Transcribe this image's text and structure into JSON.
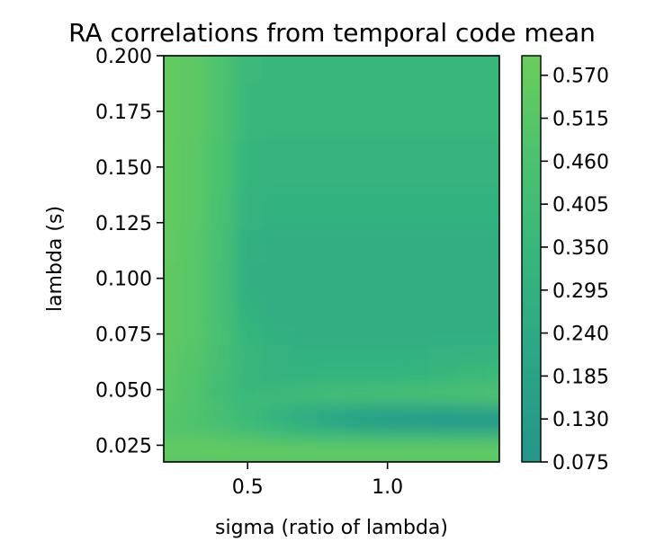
{
  "chart_data": {
    "type": "heatmap",
    "title": "RA correlations from temporal code mean",
    "xlabel": "sigma (ratio of lambda)",
    "ylabel": "lambda (s)",
    "xlim": [
      0.2,
      1.4
    ],
    "ylim": [
      0.0175,
      0.2
    ],
    "x_ticks": [
      {
        "value": 0.5,
        "label": "0.5"
      },
      {
        "value": 1.0,
        "label": "1.0"
      }
    ],
    "y_ticks": [
      {
        "value": 0.025,
        "label": "0.025"
      },
      {
        "value": 0.05,
        "label": "0.050"
      },
      {
        "value": 0.075,
        "label": "0.075"
      },
      {
        "value": 0.1,
        "label": "0.100"
      },
      {
        "value": 0.125,
        "label": "0.125"
      },
      {
        "value": 0.15,
        "label": "0.150"
      },
      {
        "value": 0.175,
        "label": "0.175"
      },
      {
        "value": 0.2,
        "label": "0.200"
      }
    ],
    "x": [
      0.2,
      0.3,
      0.4,
      0.5,
      0.6,
      0.7,
      0.8,
      0.9,
      1.0,
      1.1,
      1.2,
      1.3,
      1.4
    ],
    "y": [
      0.0175,
      0.0225,
      0.0275,
      0.0325,
      0.0375,
      0.0425,
      0.0475,
      0.055,
      0.065,
      0.075,
      0.085,
      0.1,
      0.115,
      0.13,
      0.15,
      0.175,
      0.2
    ],
    "z": [
      [
        0.55,
        0.55,
        0.55,
        0.55,
        0.55,
        0.55,
        0.55,
        0.55,
        0.55,
        0.55,
        0.55,
        0.55,
        0.55
      ],
      [
        0.56,
        0.56,
        0.56,
        0.56,
        0.56,
        0.56,
        0.56,
        0.56,
        0.56,
        0.56,
        0.56,
        0.56,
        0.56
      ],
      [
        0.53,
        0.53,
        0.52,
        0.5,
        0.48,
        0.46,
        0.45,
        0.45,
        0.45,
        0.46,
        0.46,
        0.46,
        0.47
      ],
      [
        0.5,
        0.48,
        0.44,
        0.4,
        0.35,
        0.3,
        0.26,
        0.22,
        0.2,
        0.18,
        0.16,
        0.15,
        0.14
      ],
      [
        0.5,
        0.47,
        0.42,
        0.36,
        0.3,
        0.24,
        0.18,
        0.13,
        0.1,
        0.09,
        0.08,
        0.08,
        0.08
      ],
      [
        0.52,
        0.49,
        0.44,
        0.39,
        0.35,
        0.3,
        0.27,
        0.25,
        0.24,
        0.24,
        0.24,
        0.25,
        0.26
      ],
      [
        0.53,
        0.48,
        0.4,
        0.35,
        0.37,
        0.41,
        0.44,
        0.45,
        0.46,
        0.47,
        0.48,
        0.49,
        0.5
      ],
      [
        0.53,
        0.49,
        0.42,
        0.34,
        0.31,
        0.31,
        0.32,
        0.32,
        0.32,
        0.33,
        0.34,
        0.36,
        0.38
      ],
      [
        0.54,
        0.5,
        0.43,
        0.35,
        0.31,
        0.3,
        0.3,
        0.3,
        0.3,
        0.3,
        0.31,
        0.32,
        0.33
      ],
      [
        0.55,
        0.52,
        0.44,
        0.33,
        0.29,
        0.28,
        0.28,
        0.28,
        0.28,
        0.28,
        0.28,
        0.28,
        0.28
      ],
      [
        0.55,
        0.52,
        0.43,
        0.3,
        0.27,
        0.27,
        0.27,
        0.27,
        0.27,
        0.27,
        0.27,
        0.27,
        0.27
      ],
      [
        0.55,
        0.52,
        0.43,
        0.28,
        0.28,
        0.28,
        0.27,
        0.27,
        0.27,
        0.27,
        0.27,
        0.27,
        0.27
      ],
      [
        0.56,
        0.52,
        0.44,
        0.29,
        0.28,
        0.28,
        0.28,
        0.28,
        0.28,
        0.28,
        0.28,
        0.28,
        0.28
      ],
      [
        0.56,
        0.53,
        0.45,
        0.31,
        0.3,
        0.3,
        0.3,
        0.3,
        0.3,
        0.3,
        0.3,
        0.3,
        0.3
      ],
      [
        0.56,
        0.53,
        0.46,
        0.33,
        0.32,
        0.32,
        0.32,
        0.32,
        0.32,
        0.32,
        0.32,
        0.32,
        0.32
      ],
      [
        0.57,
        0.54,
        0.47,
        0.35,
        0.34,
        0.34,
        0.34,
        0.34,
        0.34,
        0.34,
        0.34,
        0.34,
        0.34
      ],
      [
        0.57,
        0.54,
        0.47,
        0.36,
        0.35,
        0.35,
        0.35,
        0.35,
        0.35,
        0.35,
        0.35,
        0.35,
        0.35
      ]
    ],
    "colorbar": {
      "min": 0.075,
      "max": 0.595,
      "colors": [
        "#25968a",
        "#2aa686",
        "#36b67d",
        "#4cc26f",
        "#6bcd5b"
      ],
      "ticks": [
        {
          "value": 0.075,
          "label": "0.075"
        },
        {
          "value": 0.13,
          "label": "0.130"
        },
        {
          "value": 0.185,
          "label": "0.185"
        },
        {
          "value": 0.24,
          "label": "0.240"
        },
        {
          "value": 0.295,
          "label": "0.295"
        },
        {
          "value": 0.35,
          "label": "0.350"
        },
        {
          "value": 0.405,
          "label": "0.405"
        },
        {
          "value": 0.46,
          "label": "0.460"
        },
        {
          "value": 0.515,
          "label": "0.515"
        },
        {
          "value": 0.57,
          "label": "0.570"
        }
      ]
    },
    "grid": false
  }
}
